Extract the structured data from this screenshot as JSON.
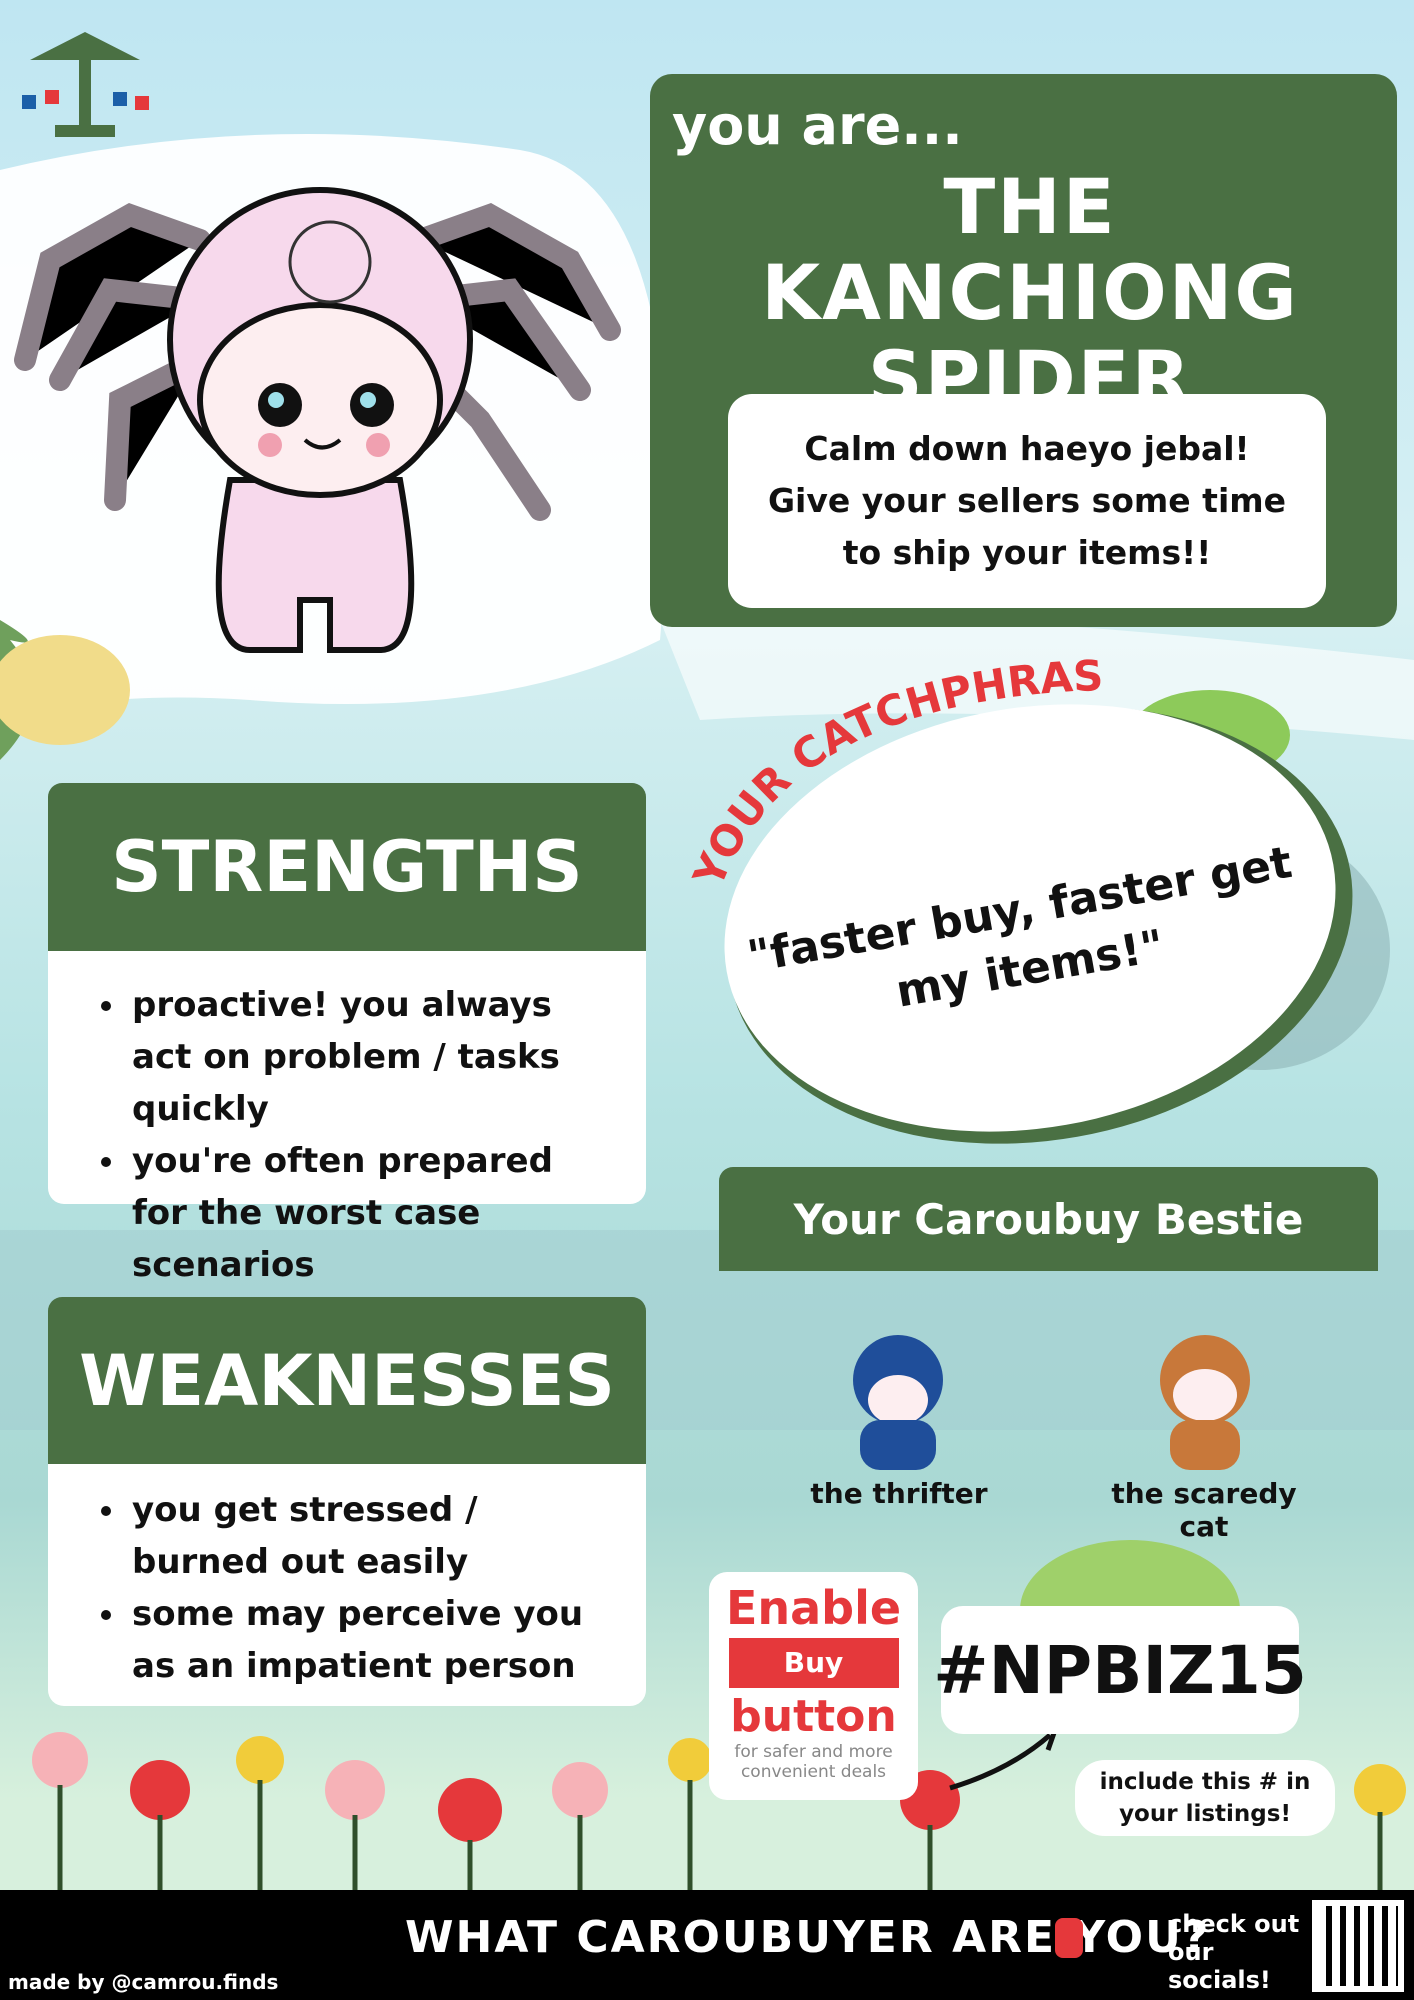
{
  "header": {
    "intro": "you are...",
    "title": "THE KANCHIONG SPIDER",
    "description": "Calm down haeyo jebal! Give your sellers some time to ship your items!!"
  },
  "catchphrase": {
    "label": "YOUR CATCHPHRASE",
    "quote": "\"faster buy, faster get my items!\""
  },
  "strengths": {
    "title": "STRENGTHS",
    "items": [
      "proactive! you always act on problem / tasks quickly",
      "you're often prepared for the worst case scenarios"
    ]
  },
  "weaknesses": {
    "title": "WEAKNESSES",
    "items": [
      "you get stressed / burned out easily",
      "some may perceive you as an impatient person"
    ]
  },
  "bestie": {
    "title": "Your Caroubuy Bestie",
    "characters": [
      "the thrifter",
      "the scaredy cat"
    ]
  },
  "buy_button": {
    "line1": "Enable",
    "button": "Buy",
    "line2": "button",
    "caption": "for safer and more convenient deals"
  },
  "hashtag": {
    "tag": "#NPBIZ15",
    "note": "include this # in your listings!"
  },
  "footer": {
    "question": "WHAT CAROUBUYER ARE YOU?",
    "socials": "check out our socials!",
    "credit": "made by @camrou.finds"
  }
}
